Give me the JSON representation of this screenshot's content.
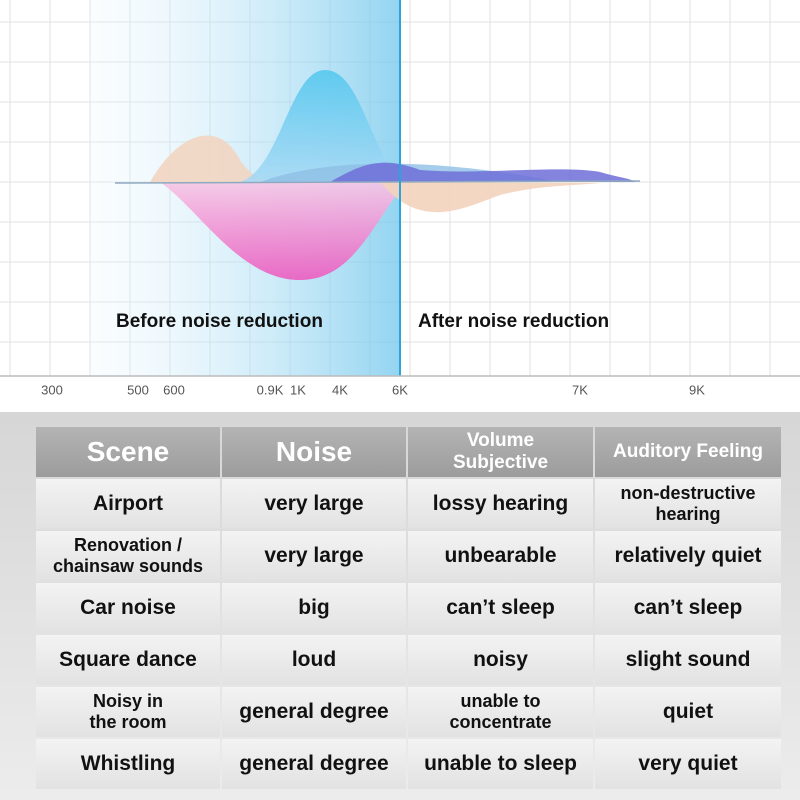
{
  "chart": {
    "x_labels": [
      "300",
      "500",
      "600",
      "0.9K",
      "1K",
      "4K",
      "6K",
      "7K",
      "9K"
    ],
    "left_label": "Before noise reduction",
    "right_label": "After noise reduction"
  },
  "table": {
    "header": [
      "Scene",
      "Noise",
      "Volume\nSubjective",
      "Auditory Feeling"
    ],
    "rows": [
      [
        "Airport",
        "very large",
        "lossy hearing",
        "non-destructive\nhearing"
      ],
      [
        "Renovation /\nchainsaw sounds",
        "very large",
        "unbearable",
        "relatively quiet"
      ],
      [
        "Car noise",
        "big",
        "can’t sleep",
        "can’t sleep"
      ],
      [
        "Square dance",
        "loud",
        "noisy",
        "slight sound"
      ],
      [
        "Noisy in\nthe room",
        "general degree",
        "unable to\nconcentrate",
        "quiet"
      ],
      [
        "Whistling",
        "general degree",
        "unable to sleep",
        "very quiet"
      ]
    ]
  }
}
